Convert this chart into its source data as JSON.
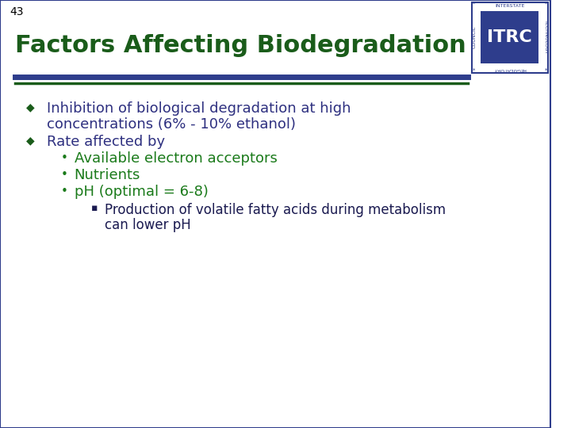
{
  "slide_number": "43",
  "title": "Factors Affecting Biodegradation",
  "title_color": "#1a5c1a",
  "title_fontsize": 22,
  "slide_number_color": "#000000",
  "slide_number_fontsize": 11,
  "background_color": "#ffffff",
  "line1_color": "#2e3d8c",
  "line2_color": "#1a5c1a",
  "bullet_color": "#1a5c1a",
  "dark_text_color": "#2e3080",
  "green_text_color": "#1a7a1a",
  "dark_navy_color": "#1a1a50",
  "bullet1_text1": "Inhibition of biological degradation at high",
  "bullet1_text2": "concentrations (6% - 10% ethanol)",
  "bullet2_text": "Rate affected by",
  "sub_bullet1": "Available electron acceptors",
  "sub_bullet2": "Nutrients",
  "sub_bullet3": "pH (optimal = 6-8)",
  "sub_sub_bullet1": "Production of volatile fatty acids during metabolism",
  "sub_sub_bullet2": "can lower pH",
  "logo_border_color": "#2e3d8c",
  "logo_inner_color": "#2e3d8c",
  "logo_text": "ITRC",
  "logo_text_color": "#2e3d8c",
  "logo_label_color": "#2e3d8c",
  "outer_border_color": "#2e3d8c"
}
